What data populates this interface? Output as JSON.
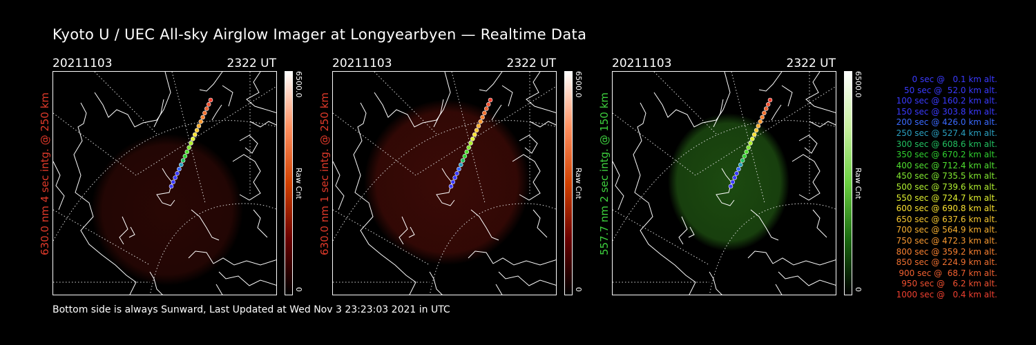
{
  "title": "Kyoto U / UEC All-sky Airglow Imager at Longyearbyen — Realtime Data",
  "footer": "Bottom side is always Sunward, Last Updated at Wed Nov  3 23:23:03 2021 in UTC",
  "panels": [
    {
      "date": "20211103",
      "time": "2322 UT",
      "side_label": "630.0 nm 4 sec intg. @ 250 km",
      "label_color": "#e23a2a",
      "colorbar_max": "6500.0",
      "colorbar_label": "Raw Cnt",
      "colorbar_min": "0",
      "glow_color": "#3a0a06"
    },
    {
      "date": "20211103",
      "time": "2322 UT",
      "side_label": "630.0 nm 1 sec intg. @ 250 km",
      "label_color": "#e23a2a",
      "colorbar_max": "6500.0",
      "colorbar_label": "Raw Cnt",
      "colorbar_min": "0",
      "glow_color": "#3a0a06"
    },
    {
      "date": "20211103",
      "time": "2322 UT",
      "side_label": "557.7 nm 2 sec intg. @ 150 km",
      "label_color": "#3ed23e",
      "colorbar_max": "6500.0",
      "colorbar_label": "Raw Cnt",
      "colorbar_min": "0",
      "glow_color": "#1c4a10"
    }
  ],
  "legend": [
    {
      "text": "0 sec @   0.1 km alt.",
      "color": "#3a3aff"
    },
    {
      "text": "50 sec @  52.0 km alt.",
      "color": "#3a3aff"
    },
    {
      "text": "100 sec @ 160.2 km alt.",
      "color": "#3a3aff"
    },
    {
      "text": "150 sec @ 303.8 km alt.",
      "color": "#3a3aff"
    },
    {
      "text": "200 sec @ 426.0 km alt.",
      "color": "#3a6aff"
    },
    {
      "text": "250 sec @ 527.4 km alt.",
      "color": "#2aa0c0"
    },
    {
      "text": "300 sec @ 608.6 km alt.",
      "color": "#22c060"
    },
    {
      "text": "350 sec @ 670.2 km alt.",
      "color": "#30d030"
    },
    {
      "text": "400 sec @ 712.4 km alt.",
      "color": "#50e030"
    },
    {
      "text": "450 sec @ 735.5 km alt.",
      "color": "#80e830"
    },
    {
      "text": "500 sec @ 739.6 km alt.",
      "color": "#b0f030"
    },
    {
      "text": "550 sec @ 724.7 km alt.",
      "color": "#e0f030"
    },
    {
      "text": "600 sec @ 690.8 km alt.",
      "color": "#f8e030"
    },
    {
      "text": "650 sec @ 637.6 km alt.",
      "color": "#f8c830"
    },
    {
      "text": "700 sec @ 564.9 km alt.",
      "color": "#f8b030"
    },
    {
      "text": "750 sec @ 472.3 km alt.",
      "color": "#f89830"
    },
    {
      "text": "800 sec @ 359.2 km alt.",
      "color": "#f88030"
    },
    {
      "text": "850 sec @ 224.9 km alt.",
      "color": "#f07030"
    },
    {
      "text": "900 sec @  68.7 km alt.",
      "color": "#f06030"
    },
    {
      "text": "950 sec @   6.2 km alt.",
      "color": "#f05030"
    },
    {
      "text": "1000 sec @   0.4 km alt.",
      "color": "#f04030"
    }
  ]
}
